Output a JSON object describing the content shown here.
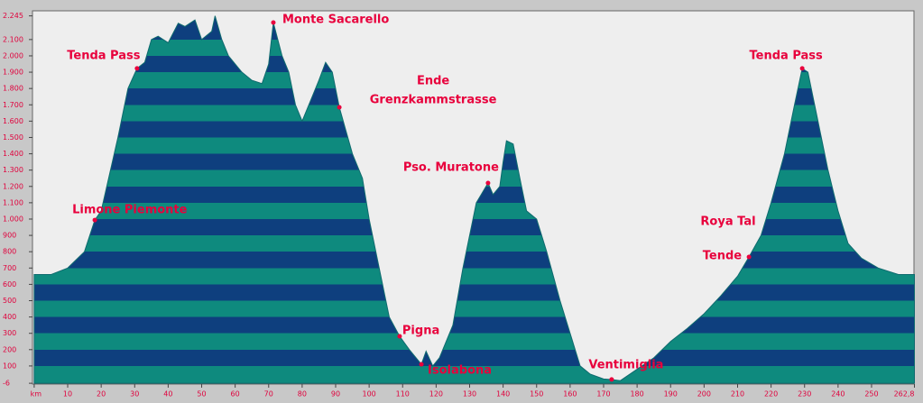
{
  "chart_data": {
    "type": "area",
    "x": [
      0,
      5,
      10,
      15,
      18.1,
      20,
      25,
      28,
      30.7,
      33,
      35,
      37,
      40,
      43,
      45,
      48,
      50,
      53,
      54,
      56,
      58,
      62,
      65,
      68,
      70,
      71.4,
      74,
      76,
      78,
      80,
      82,
      85,
      87,
      89,
      91.1,
      95,
      98,
      100,
      103,
      106,
      109.1,
      112,
      115.6,
      117,
      119,
      121,
      125,
      128,
      132,
      135.5,
      137,
      139,
      140,
      141,
      143,
      145,
      147,
      150,
      153,
      157,
      160,
      163,
      166,
      170,
      172.4,
      175,
      180,
      185,
      190,
      195,
      200,
      205,
      210,
      213.4,
      217,
      220,
      224,
      227,
      229.3,
      231,
      234,
      237,
      240,
      243,
      247,
      252,
      258,
      262.8
    ],
    "series": [
      {
        "values": [
          660,
          660,
          700,
          800,
          994,
          1050,
          1500,
          1800,
          1923,
          1960,
          2100,
          2120,
          2080,
          2200,
          2180,
          2220,
          2100,
          2150,
          2245,
          2100,
          2000,
          1900,
          1850,
          1830,
          1950,
          2204,
          2000,
          1900,
          1700,
          1600,
          1700,
          1850,
          1960,
          1900,
          1685,
          1400,
          1250,
          1000,
          700,
          400,
          282,
          200,
          110,
          190,
          100,
          150,
          350,
          700,
          1100,
          1221,
          1150,
          1200,
          1350,
          1480,
          1460,
          1250,
          1050,
          1000,
          800,
          500,
          300,
          100,
          50,
          20,
          17,
          10,
          80,
          150,
          250,
          330,
          420,
          530,
          650,
          768,
          900,
          1100,
          1400,
          1700,
          1923,
          1900,
          1600,
          1300,
          1050,
          850,
          760,
          700,
          660,
          660
        ]
      }
    ],
    "stripe_colors": [
      "#0e8a7e",
      "#0e3f7e"
    ],
    "xlim": [
      0,
      262.8
    ],
    "ylim": [
      -6,
      2245
    ],
    "xticks": [
      {
        "value": 0,
        "label": "km"
      },
      10,
      20,
      30,
      40,
      50,
      60,
      70,
      80,
      90,
      100,
      110,
      120,
      130,
      140,
      150,
      160,
      170,
      180,
      190,
      200,
      210,
      220,
      230,
      240,
      250,
      {
        "value": 262.8,
        "label": "262,8"
      }
    ],
    "yticks": [
      -6,
      100,
      200,
      300,
      400,
      500,
      600,
      700,
      800,
      900,
      {
        "value": 1000,
        "label": "1.000"
      },
      {
        "value": 1100,
        "label": "1.100"
      },
      {
        "value": 1200,
        "label": "1.200"
      },
      {
        "value": 1300,
        "label": "1.300"
      },
      {
        "value": 1400,
        "label": "1.400"
      },
      {
        "value": 1500,
        "label": "1.500"
      },
      {
        "value": 1600,
        "label": "1.600"
      },
      {
        "value": 1700,
        "label": "1.700"
      },
      {
        "value": 1800,
        "label": "1.800"
      },
      {
        "value": 1900,
        "label": "1.900"
      },
      {
        "value": 2000,
        "label": "2.000"
      },
      {
        "value": 2100,
        "label": "2.100"
      },
      {
        "value": 2245,
        "label": "2.245"
      }
    ],
    "annotations": [
      {
        "lines": [
          "Tenda Pass"
        ],
        "x": 30.7,
        "y": 1923
      },
      {
        "lines": [
          "Monte Sacarello"
        ],
        "x": 71.4,
        "y": 2204
      },
      {
        "lines": [
          "Ende",
          "Grenzkammstrasse"
        ],
        "x": 91.1,
        "y": 1685
      },
      {
        "lines": [
          "Limone Piemonte"
        ],
        "x": 18.1,
        "y": 994
      },
      {
        "lines": [
          "Pso. Muratone"
        ],
        "x": 135.5,
        "y": 1221
      },
      {
        "lines": [
          "Pigna"
        ],
        "x": 109.1,
        "y": 282
      },
      {
        "lines": [
          "Isolabona"
        ],
        "x": 115.6,
        "y": 110
      },
      {
        "lines": [
          "Ventimiglia"
        ],
        "x": 172.4,
        "y": 17
      },
      {
        "lines": [
          "Roya Tal"
        ]
      },
      {
        "lines": [
          "Tende"
        ],
        "x": 213.4,
        "y": 768
      },
      {
        "lines": [
          "Tenda Pass"
        ],
        "x": 229.3,
        "y": 1923
      }
    ]
  }
}
